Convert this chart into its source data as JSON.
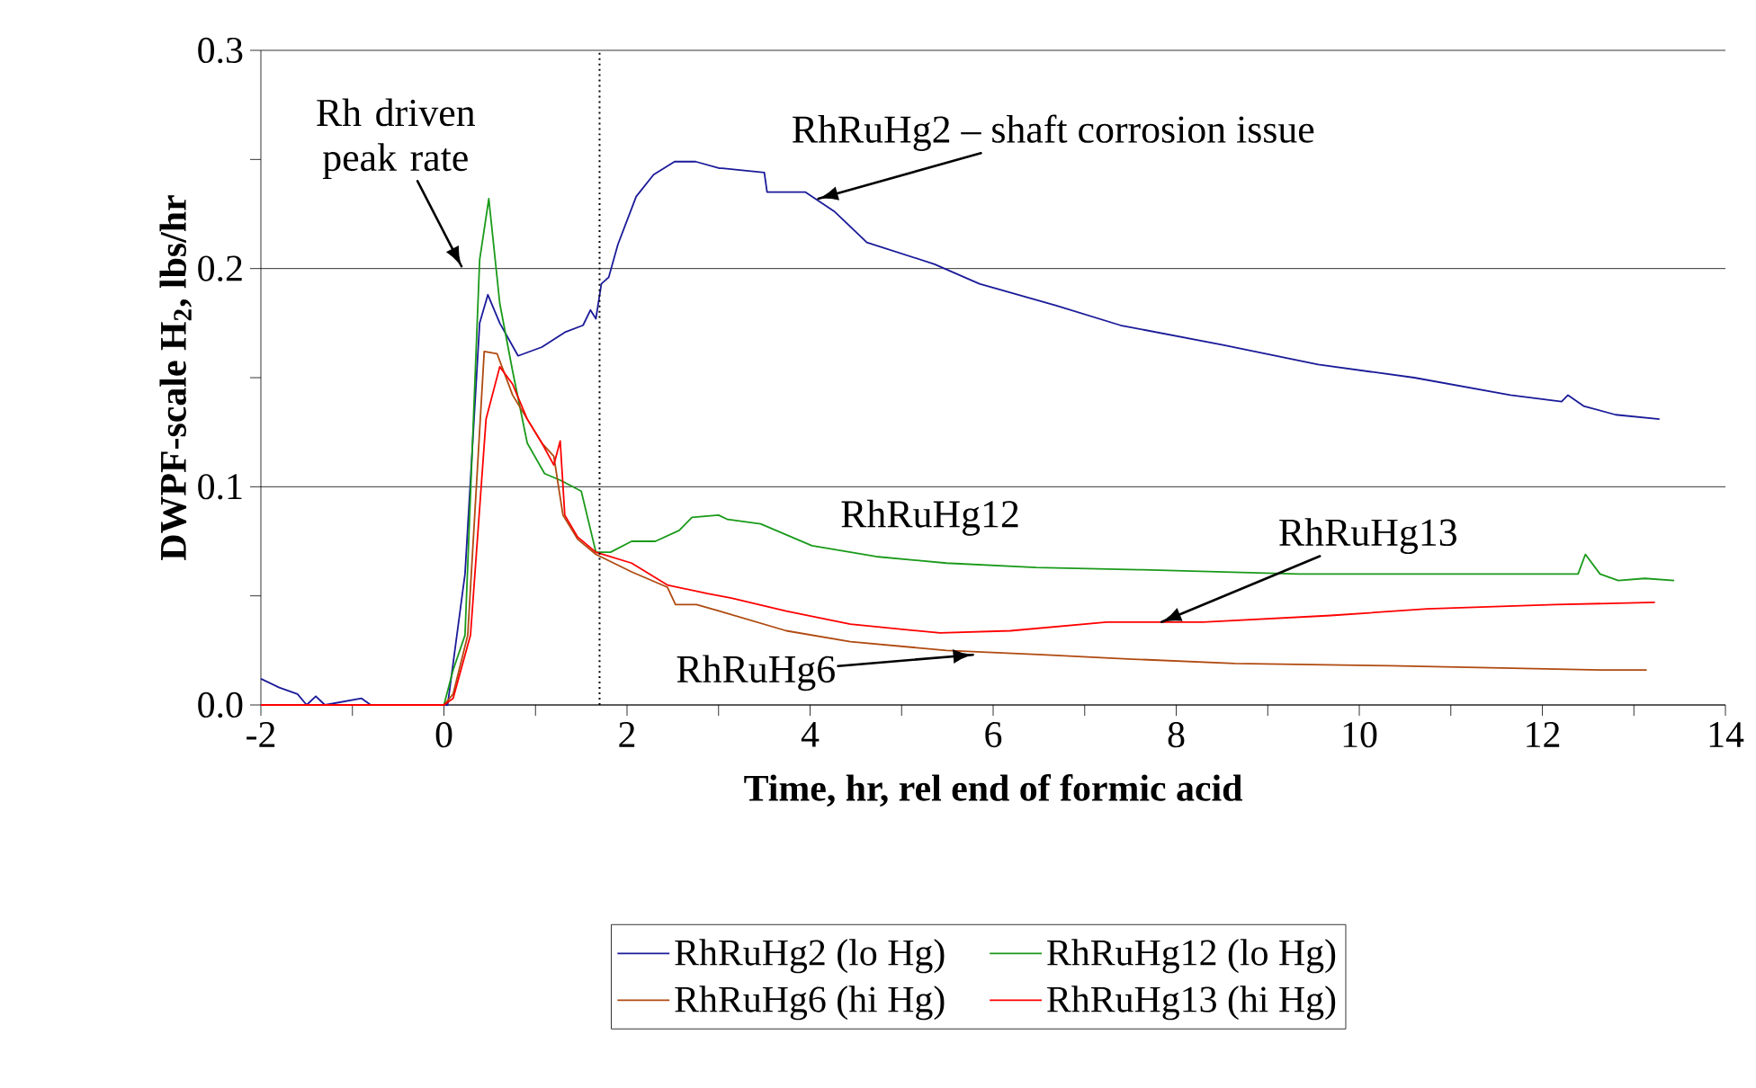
{
  "chart_data": {
    "type": "line",
    "xlabel": "Time, hr, rel end of formic acid",
    "ylabel": "**DWPF-scale H$_{2}$, lbs/hr**",
    "xlim": [
      -2,
      14
    ],
    "ylim": [
      0,
      0.3
    ],
    "xticks": [
      -2,
      {
        "value": -1,
        "label": null
      },
      0,
      {
        "value": 1,
        "label": null
      },
      2,
      {
        "value": 3,
        "label": null
      },
      4,
      {
        "value": 5,
        "label": null
      },
      6,
      {
        "value": 7,
        "label": null
      },
      8,
      {
        "value": 9,
        "label": null
      },
      10,
      {
        "value": 11,
        "label": null
      },
      12,
      {
        "value": 13,
        "label": null
      },
      14
    ],
    "yticks": [
      {
        "value": 0,
        "label": "0.0"
      },
      {
        "value": 0.05,
        "label": null
      },
      0.1,
      {
        "value": 0.15,
        "label": null
      },
      0.2,
      {
        "value": 0.25,
        "label": null
      },
      0.3
    ],
    "grid": "y",
    "legend": "bottom",
    "marker": "none",
    "line_style": "solid",
    "ref_lines": [
      {
        "axis": "x",
        "value": 1.7,
        "line_style": "dotted",
        "color": "#000000"
      }
    ],
    "annotations": [
      "Rh driven peak rate",
      {
        "text": "RhRuHg2 – shaft corrosion issue",
        "x": 4.09,
        "y": 0.232
      },
      "RhRuHg12",
      {
        "text": "RhRuHg13",
        "x": 7.84,
        "y": 0.038
      },
      {
        "text": "RhRuHg6",
        "x": 5.78,
        "y": 0.023
      }
    ],
    "series": [
      {
        "name": "RhRuHg2 (lo Hg)",
        "color": "#1a1a99",
        "x": [
          -2,
          -1.8,
          -1.6,
          -1.5,
          -1.4,
          -1.3,
          -0.9,
          -0.8,
          0,
          0.04,
          0.23,
          0.39,
          0.48,
          0.61,
          0.81,
          1.07,
          1.33,
          1.52,
          1.6,
          1.66,
          1.72,
          1.8,
          1.9,
          2.1,
          2.29,
          2.52,
          2.75,
          3.01,
          3.04,
          3.5,
          3.53,
          3.95,
          4.27,
          4.62,
          5.36,
          5.85,
          6.69,
          7.39,
          8.51,
          9.55,
          10.6,
          11.65,
          12.21,
          12.28,
          12.45,
          12.8,
          13.28
        ],
        "values": [
          0.012,
          0.008,
          0.005,
          0,
          0.004,
          0,
          0.003,
          0,
          0,
          0,
          0.06,
          0.175,
          0.188,
          0.175,
          0.16,
          0.164,
          0.171,
          0.174,
          0.181,
          0.177,
          0.193,
          0.196,
          0.211,
          0.233,
          0.243,
          0.249,
          0.249,
          0.246,
          0.246,
          0.244,
          0.235,
          0.235,
          0.226,
          0.212,
          0.202,
          0.193,
          0.183,
          0.174,
          0.165,
          0.156,
          0.15,
          0.142,
          0.139,
          0.142,
          0.137,
          0.133,
          0.131
        ]
      },
      {
        "name": "RhRuHg12 (lo Hg)",
        "color": "#1a9a1a",
        "x": [
          -2,
          0,
          0.1,
          0.23,
          0.39,
          0.49,
          0.61,
          0.75,
          0.91,
          1.1,
          1.27,
          1.5,
          1.66,
          1.82,
          2.05,
          2.31,
          2.57,
          2.71,
          3.0,
          3.1,
          3.46,
          4.02,
          4.72,
          5.49,
          6.47,
          7.59,
          9.34,
          12.39,
          12.47,
          12.63,
          12.83,
          13.12,
          13.44
        ],
        "values": [
          0,
          0,
          0.016,
          0.032,
          0.204,
          0.232,
          0.184,
          0.153,
          0.12,
          0.106,
          0.103,
          0.098,
          0.07,
          0.07,
          0.075,
          0.075,
          0.08,
          0.086,
          0.087,
          0.085,
          0.083,
          0.073,
          0.068,
          0.065,
          0.063,
          0.062,
          0.06,
          0.06,
          0.069,
          0.06,
          0.057,
          0.058,
          0.057
        ]
      },
      {
        "name": "RhRuHg6 (hi Hg)",
        "color": "#b04a10",
        "x": [
          -2,
          0,
          0.1,
          0.26,
          0.44,
          0.58,
          0.75,
          0.91,
          1.07,
          1.2,
          1.3,
          1.46,
          1.66,
          2.05,
          2.44,
          2.53,
          2.76,
          3.01,
          3.74,
          4.44,
          5.49,
          6.54,
          7.52,
          8.64,
          10.33,
          12.64,
          13.14
        ],
        "values": [
          0,
          0,
          0.005,
          0.032,
          0.162,
          0.161,
          0.142,
          0.131,
          0.12,
          0.114,
          0.087,
          0.076,
          0.069,
          0.061,
          0.054,
          0.046,
          0.046,
          0.043,
          0.034,
          0.029,
          0.025,
          0.023,
          0.021,
          0.019,
          0.018,
          0.016,
          0.016
        ]
      },
      {
        "name": "RhRuHg13 (hi Hg)",
        "color": "#ff0000",
        "x": [
          -2,
          0,
          0.1,
          0.29,
          0.46,
          0.61,
          0.75,
          0.91,
          1.07,
          1.2,
          1.27,
          1.32,
          1.46,
          1.66,
          2.05,
          2.44,
          2.88,
          3.14,
          3.74,
          4.44,
          5.42,
          6.19,
          7.24,
          8.29,
          9.69,
          10.74,
          12.14,
          13.23
        ],
        "values": [
          0,
          0,
          0.003,
          0.032,
          0.131,
          0.155,
          0.147,
          0.131,
          0.12,
          0.11,
          0.121,
          0.087,
          0.077,
          0.07,
          0.065,
          0.055,
          0.051,
          0.049,
          0.043,
          0.037,
          0.033,
          0.034,
          0.038,
          0.038,
          0.041,
          0.044,
          0.046,
          0.047
        ]
      }
    ]
  }
}
